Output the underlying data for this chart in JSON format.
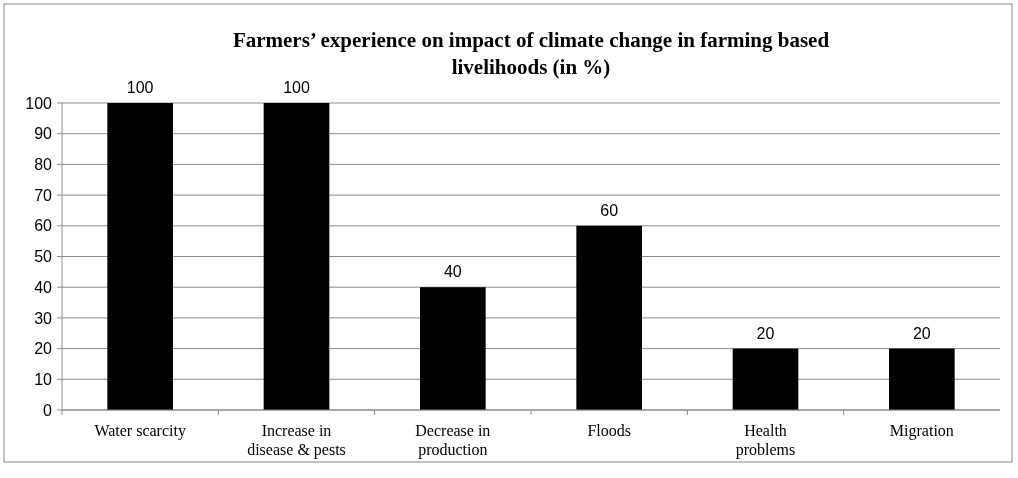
{
  "chart_data": {
    "type": "bar",
    "title": "Farmers’ experience on impact of climate change in farming based livelihoods (in %)",
    "categories": [
      "Water scarcity",
      "Increase in disease & pests",
      "Decrease in production",
      "Floods",
      "Health problems",
      "Migration"
    ],
    "values": [
      100,
      100,
      40,
      60,
      20,
      20
    ],
    "color": "#000000",
    "ylim": [
      0,
      100
    ],
    "yticks": [
      0,
      10,
      20,
      30,
      40,
      50,
      60,
      70,
      80,
      90,
      100
    ],
    "grid": "y",
    "data_labels": true
  }
}
